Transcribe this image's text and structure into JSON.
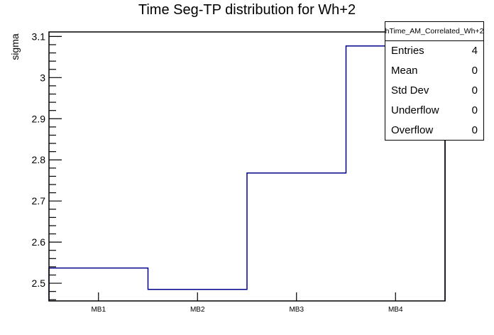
{
  "header": {
    "title": "Time Seg-TP distribution for Wh+2"
  },
  "chart_data": {
    "type": "step-histogram",
    "title": "Time Seg-TP distribution for Wh+2",
    "xlabel": "",
    "ylabel": "sigma",
    "categories": [
      "MB1",
      "MB2",
      "MB3",
      "MB4"
    ],
    "values": [
      2.537,
      2.485,
      2.768,
      3.077
    ],
    "ylim": [
      2.457,
      3.111
    ],
    "y_major_ticks": [
      2.5,
      2.6,
      2.7,
      2.8,
      2.9,
      3.0,
      3.1
    ],
    "y_major_labels": [
      "2.5",
      "2.6",
      "2.7",
      "2.8",
      "2.9",
      "3",
      "3.1"
    ],
    "y_minor_step": 0.02,
    "grid": false,
    "line_color": "#00008b",
    "axis_color": "#000000",
    "background_color": "#ffffff"
  },
  "stats": {
    "title": "hTime_AM_Correlated_Wh+2",
    "rows": [
      {
        "label": "Entries",
        "value": "4"
      },
      {
        "label": "Mean",
        "value": "0"
      },
      {
        "label": "Std Dev",
        "value": "0"
      },
      {
        "label": "Underflow",
        "value": "0"
      },
      {
        "label": "Overflow",
        "value": "0"
      }
    ]
  }
}
